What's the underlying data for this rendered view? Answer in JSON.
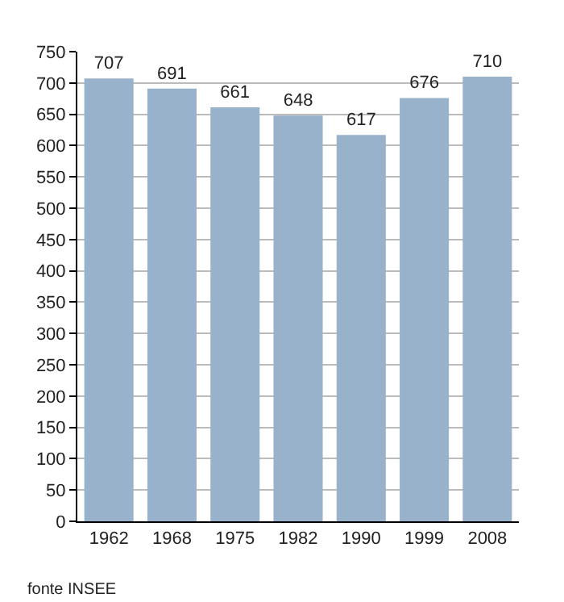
{
  "chart_data": {
    "type": "bar",
    "categories": [
      "1962",
      "1968",
      "1975",
      "1982",
      "1990",
      "1999",
      "2008"
    ],
    "values": [
      707,
      691,
      661,
      648,
      617,
      676,
      710
    ],
    "color": "#98b2cb",
    "ylim": [
      0,
      750
    ],
    "yticks": [
      0,
      50,
      100,
      150,
      200,
      250,
      300,
      350,
      400,
      450,
      500,
      550,
      600,
      650,
      700,
      750
    ],
    "grid": "y",
    "data_labels": true,
    "annotations": [
      "fonte INSEE"
    ]
  }
}
